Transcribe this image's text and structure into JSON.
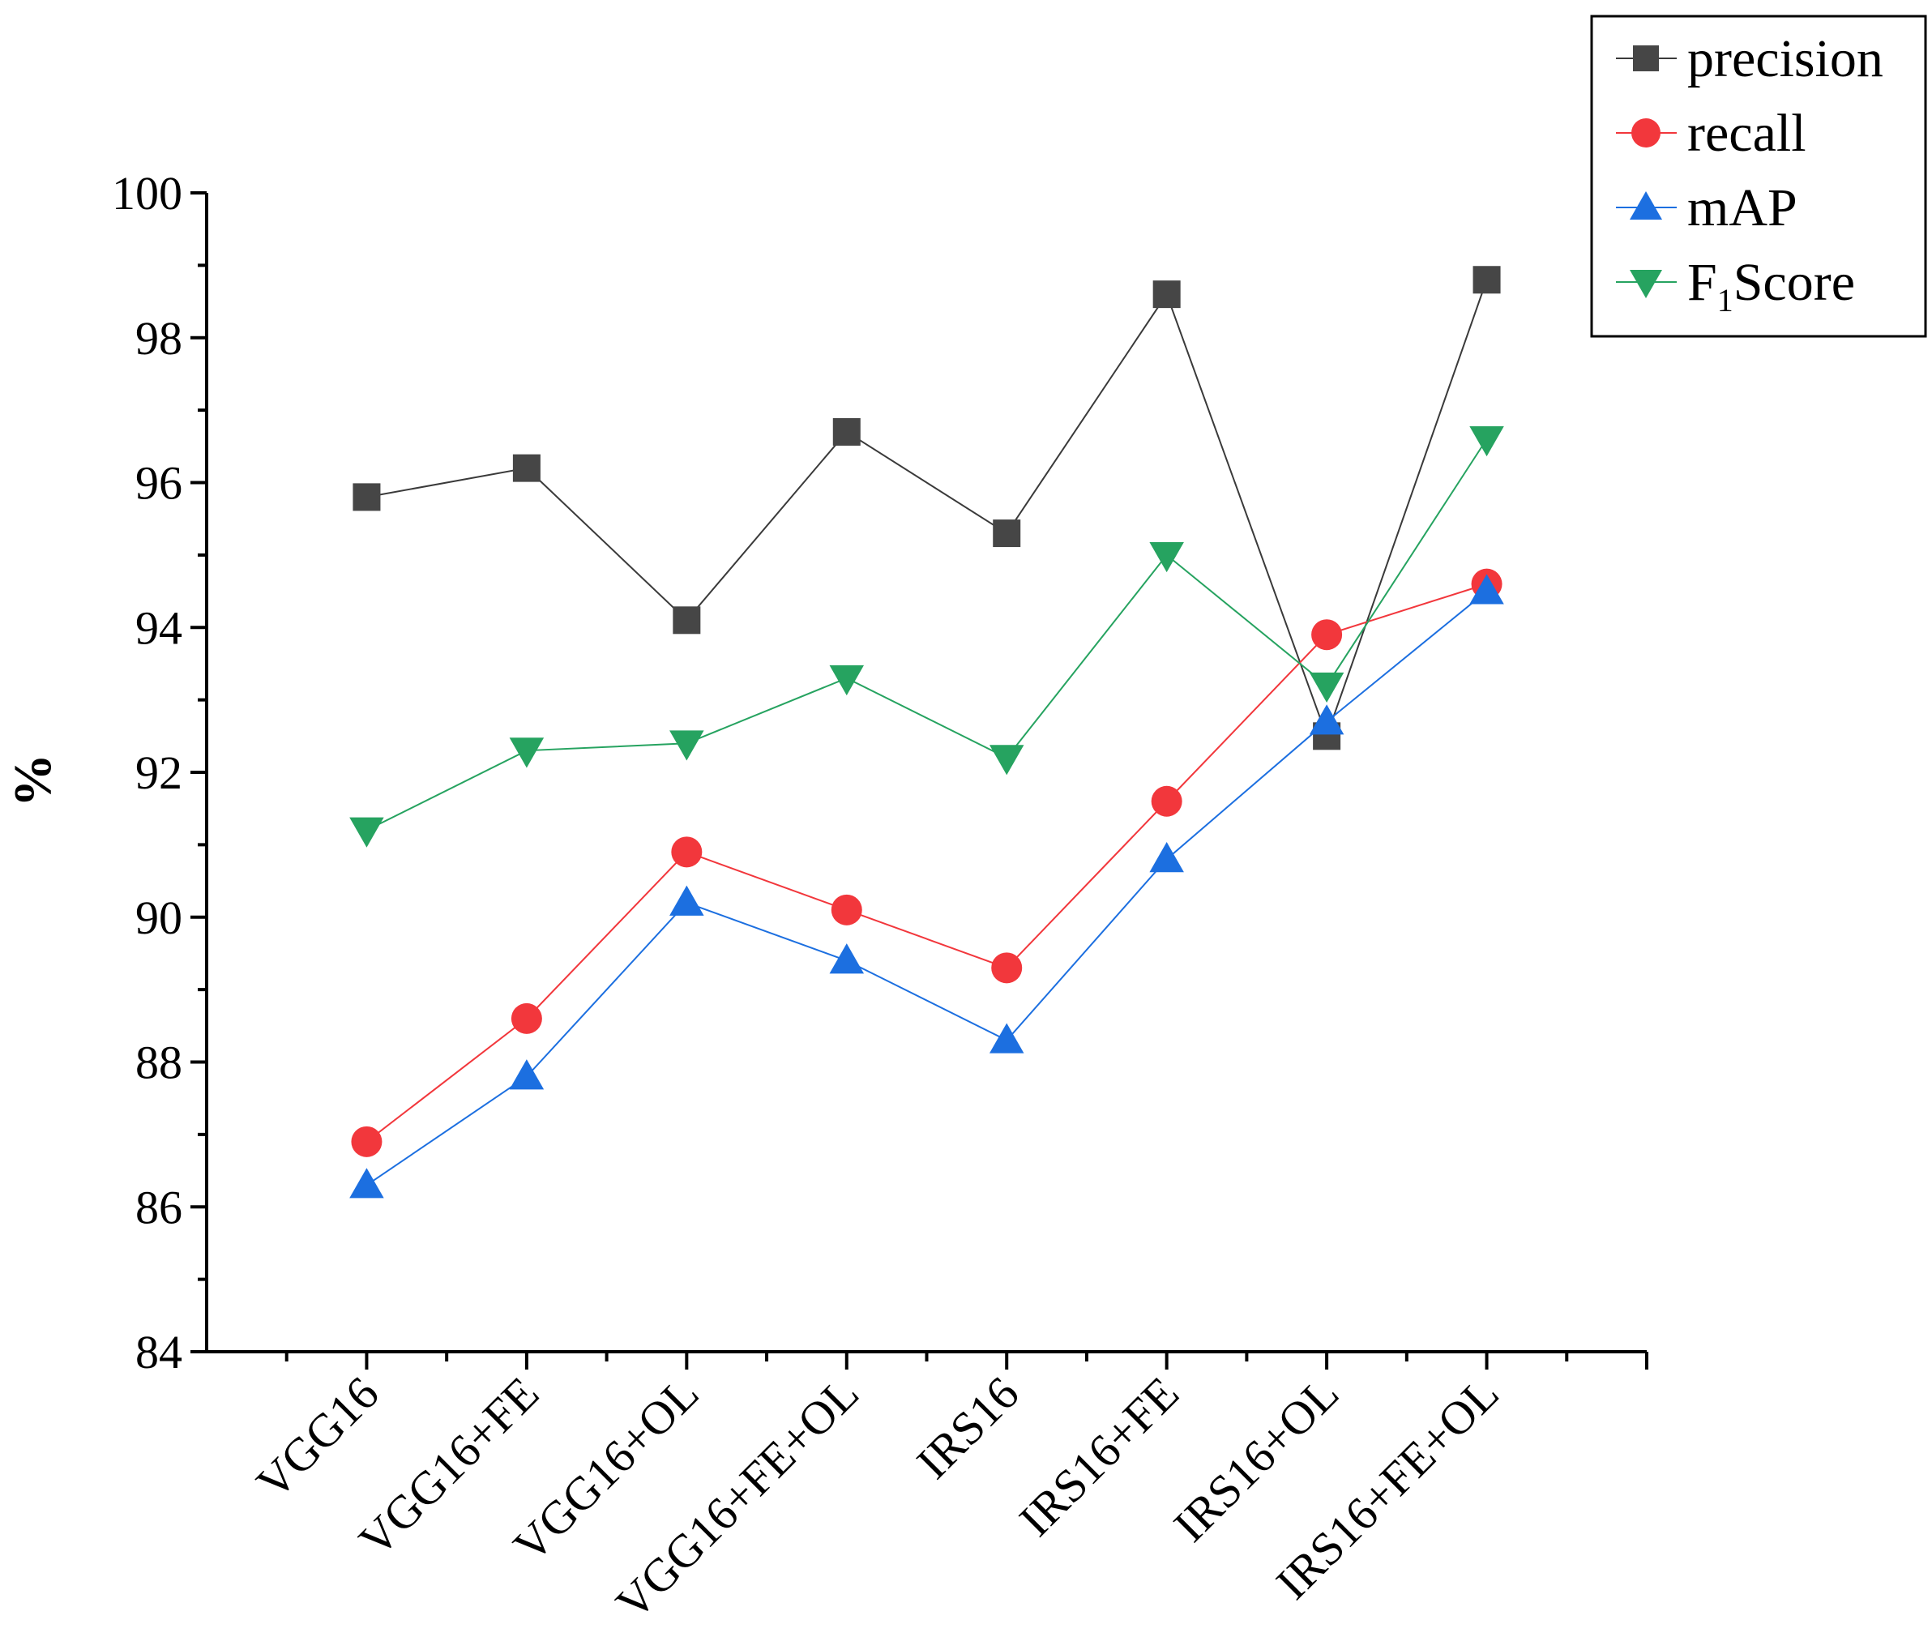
{
  "chart_data": {
    "type": "line",
    "title": "",
    "xlabel": "",
    "ylabel": "%",
    "ylim": [
      84,
      100
    ],
    "yticks": [
      84,
      86,
      88,
      90,
      92,
      94,
      96,
      98,
      100
    ],
    "categories": [
      "VGG16",
      "VGG16+FE",
      "VGG16+OL",
      "VGG16+FE+OL",
      "IRS16",
      "IRS16+FE",
      "IRS16+OL",
      "IRS16+FE+OL"
    ],
    "legend_position": "top-right",
    "series": [
      {
        "name": "precision",
        "label_main": "precision",
        "label_sub": "",
        "label_tail": "",
        "marker": "square",
        "color": "#464646",
        "line_color": "#3a3a3a",
        "values": [
          95.8,
          96.2,
          94.1,
          96.7,
          95.3,
          98.6,
          92.5,
          98.8
        ]
      },
      {
        "name": "recall",
        "label_main": "recall",
        "label_sub": "",
        "label_tail": "",
        "marker": "circle",
        "color": "#f2373c",
        "line_color": "#f2373c",
        "values": [
          86.9,
          88.6,
          90.9,
          90.1,
          89.3,
          91.6,
          93.9,
          94.6
        ]
      },
      {
        "name": "mAP",
        "label_main": "mAP",
        "label_sub": "",
        "label_tail": "",
        "marker": "triangle-up",
        "color": "#1c6fe0",
        "line_color": "#1c6fe0",
        "values": [
          86.3,
          87.8,
          90.2,
          89.4,
          88.3,
          90.8,
          92.7,
          94.5
        ]
      },
      {
        "name": "F1Score",
        "label_main": "F",
        "label_sub": "1",
        "label_tail": "Score",
        "marker": "triangle-down",
        "color": "#26a360",
        "line_color": "#26a360",
        "values": [
          91.2,
          92.3,
          92.4,
          93.3,
          92.2,
          95.0,
          93.2,
          96.6
        ]
      }
    ]
  }
}
